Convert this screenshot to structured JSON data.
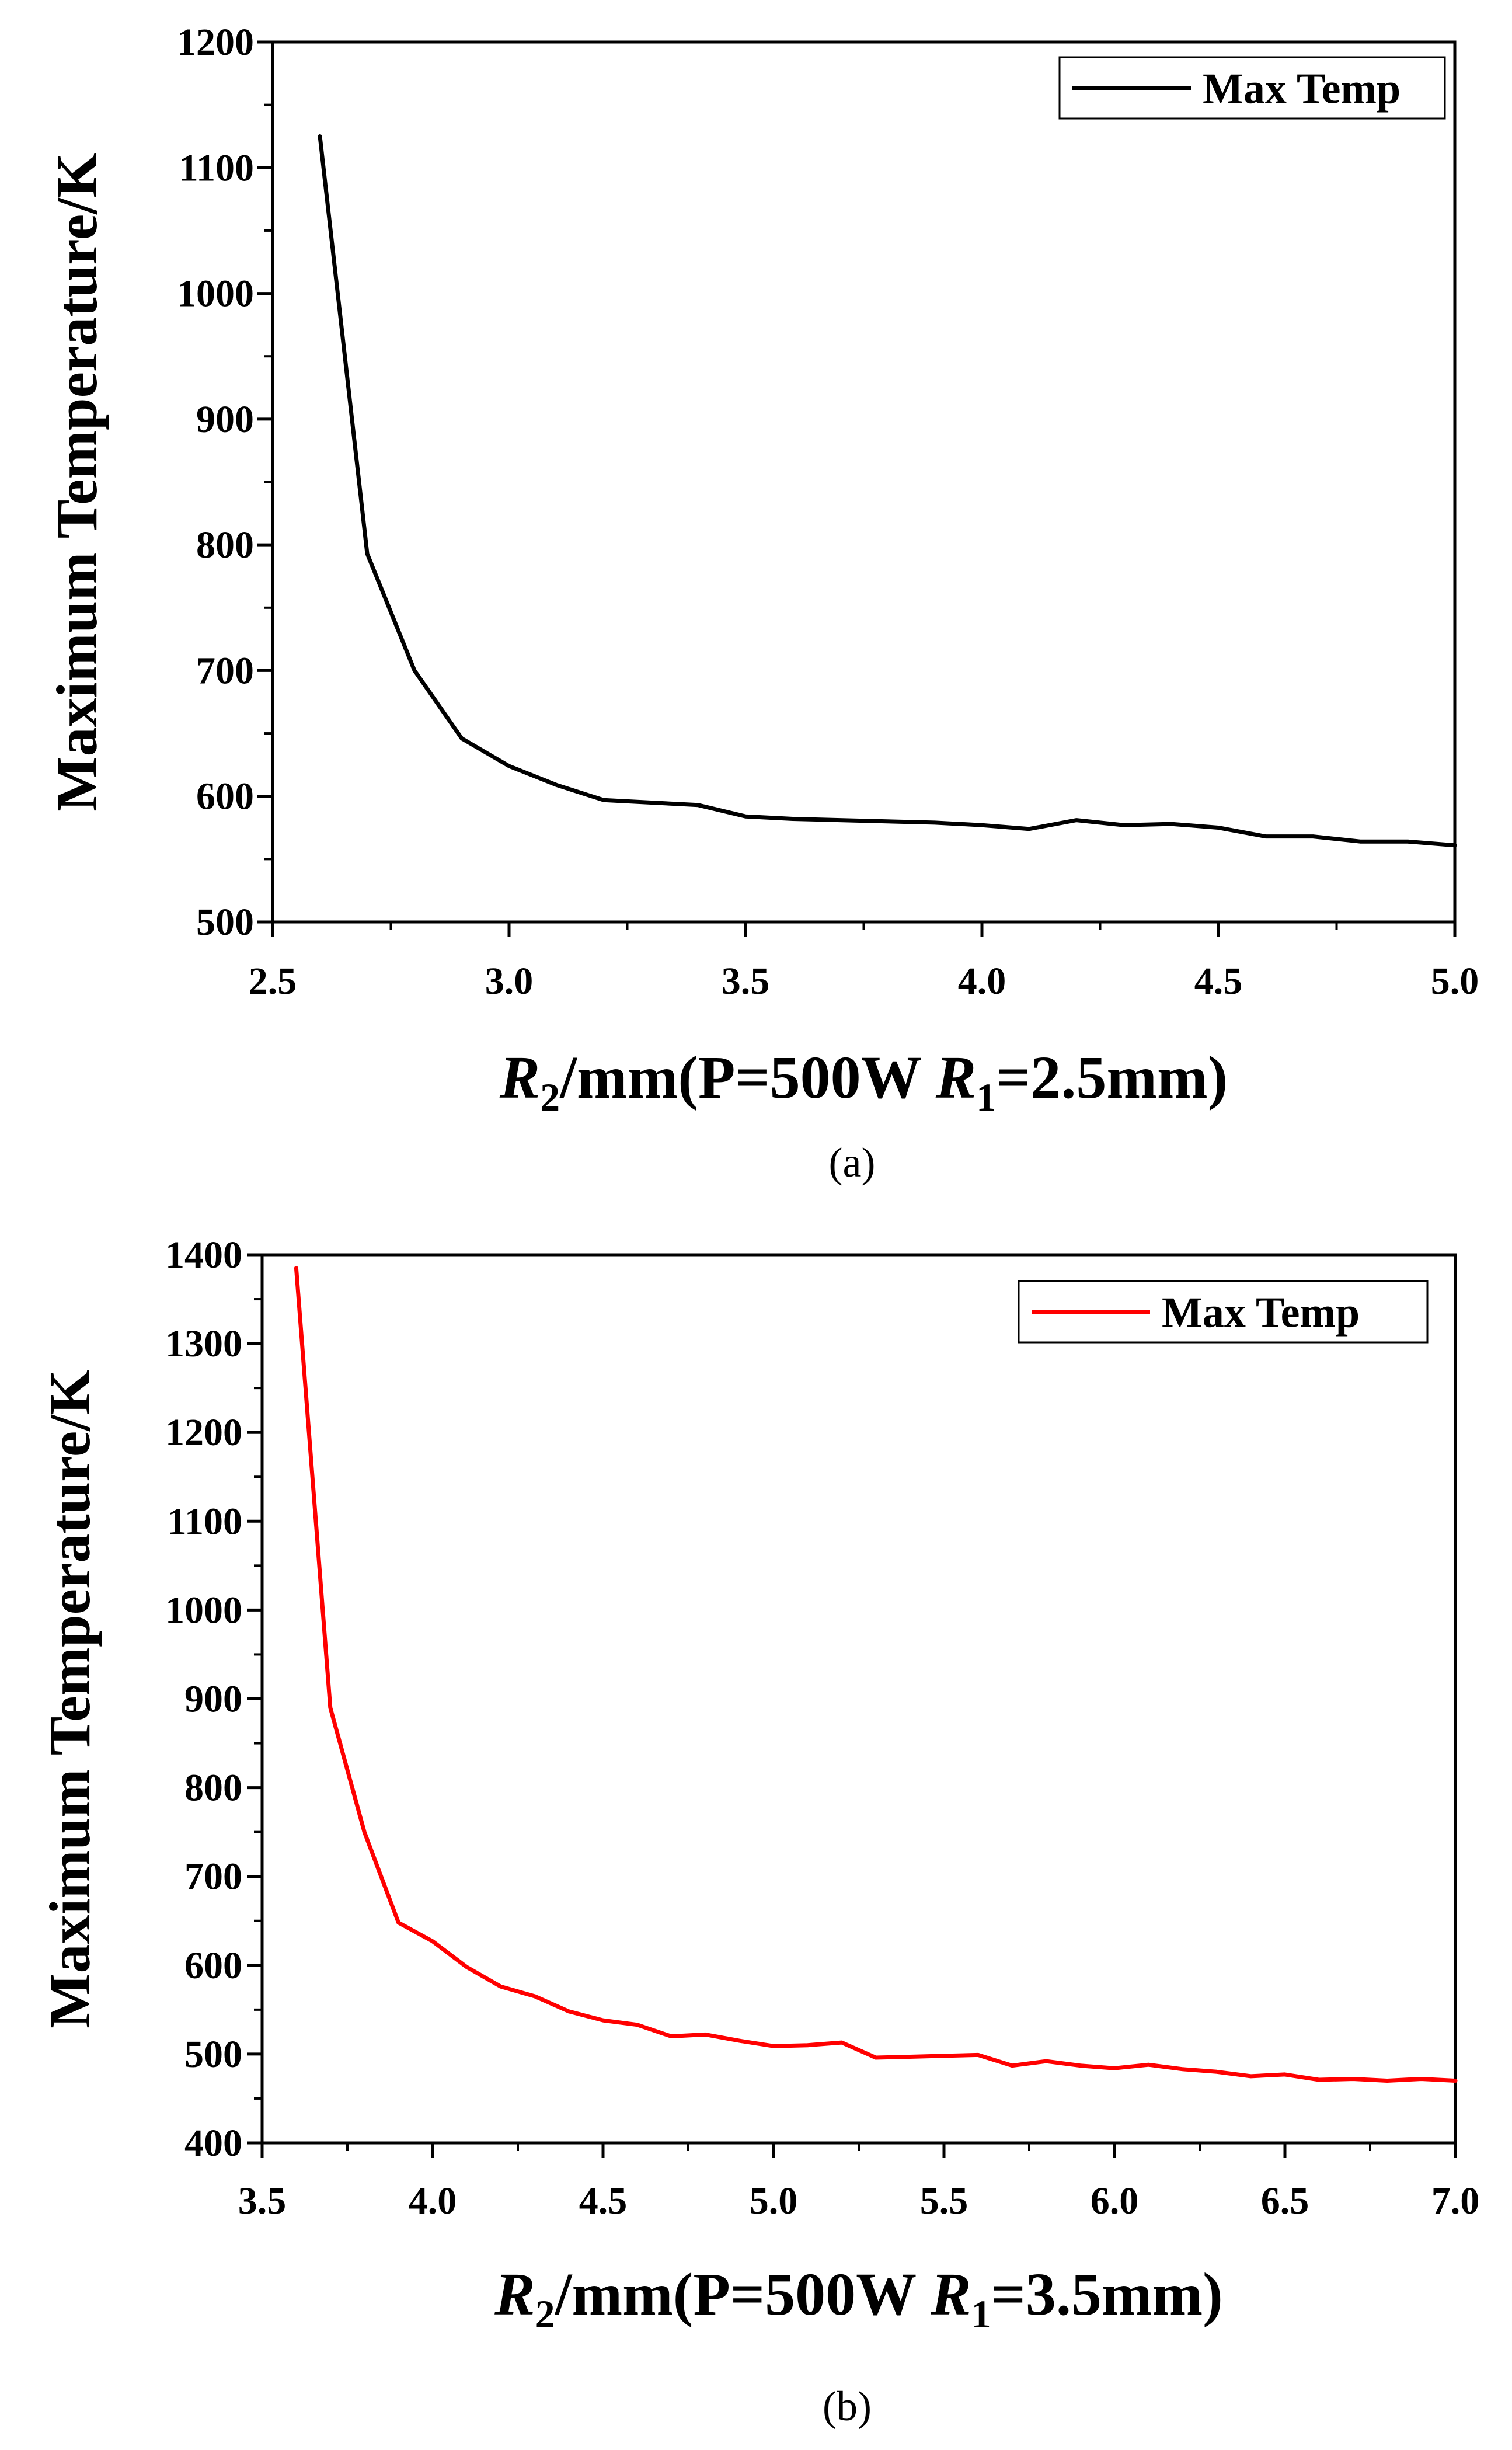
{
  "chart_data": [
    {
      "type": "line",
      "panel_label": "(a)",
      "xlabel": {
        "italic": "R",
        "sub": "2",
        "text": "/mm(P=500W ",
        "italic2": "R",
        "sub2": "1",
        "tail": "=2.5mm)"
      },
      "ylabel": "Maximum Temperature/K",
      "xlim": [
        2.5,
        5.0
      ],
      "ylim": [
        500,
        1200
      ],
      "xticks": [
        2.5,
        3.0,
        3.5,
        4.0,
        4.5,
        5.0
      ],
      "xtick_labels": [
        "2.5",
        "3.0",
        "3.5",
        "4.0",
        "4.5",
        "5.0"
      ],
      "yticks": [
        500,
        600,
        700,
        800,
        900,
        1000,
        1100,
        1200
      ],
      "ytick_labels": [
        "500",
        "600",
        "700",
        "800",
        "900",
        "1000",
        "1100",
        "1200"
      ],
      "legend_position": "top-right",
      "series": [
        {
          "name": "Max Temp",
          "color": "#000000",
          "x": [
            2.6,
            2.7,
            2.8,
            2.9,
            3.0,
            3.1,
            3.2,
            3.3,
            3.4,
            3.5,
            3.6,
            3.7,
            3.8,
            3.9,
            4.0,
            4.1,
            4.2,
            4.3,
            4.4,
            4.5,
            4.6,
            4.7,
            4.8,
            4.9,
            5.0
          ],
          "values": [
            1125,
            793,
            700,
            646,
            624,
            609,
            597,
            595,
            593,
            584,
            582,
            581,
            580,
            579,
            577,
            574,
            581,
            577,
            578,
            575,
            568,
            568,
            564,
            564,
            561
          ]
        }
      ]
    },
    {
      "type": "line",
      "panel_label": "(b)",
      "xlabel": {
        "italic": "R",
        "sub": "2",
        "text": "/mm(P=500W ",
        "italic2": "R",
        "sub2": "1",
        "tail": "=3.5mm)"
      },
      "ylabel": "Maximum Temperature/K",
      "xlim": [
        3.5,
        7.0
      ],
      "ylim": [
        400,
        1400
      ],
      "xticks": [
        3.5,
        4.0,
        4.5,
        5.0,
        5.5,
        6.0,
        6.5,
        7.0
      ],
      "xtick_labels": [
        "3.5",
        "4.0",
        "4.5",
        "5.0",
        "5.5",
        "6.0",
        "6.5",
        "7.0"
      ],
      "yticks": [
        400,
        500,
        600,
        700,
        800,
        900,
        1000,
        1100,
        1200,
        1300,
        1400
      ],
      "ytick_labels": [
        "400",
        "500",
        "600",
        "700",
        "800",
        "900",
        "1000",
        "1100",
        "1200",
        "1300",
        "1400"
      ],
      "legend_position": "top-right",
      "series": [
        {
          "name": "Max Temp",
          "color": "#ff0000",
          "x": [
            3.6,
            3.7,
            3.8,
            3.9,
            4.0,
            4.1,
            4.2,
            4.3,
            4.4,
            4.5,
            4.6,
            4.7,
            4.8,
            4.9,
            5.0,
            5.1,
            5.2,
            5.3,
            5.4,
            5.5,
            5.6,
            5.7,
            5.8,
            5.9,
            6.0,
            6.1,
            6.2,
            6.3,
            6.4,
            6.5,
            6.6,
            6.7,
            6.8,
            6.9,
            7.0
          ],
          "values": [
            1385,
            890,
            750,
            648,
            627,
            598,
            576,
            565,
            548,
            538,
            533,
            520,
            522,
            515,
            509,
            510,
            513,
            496,
            497,
            498,
            499,
            487,
            492,
            487,
            484,
            488,
            483,
            480,
            475,
            477,
            471,
            472,
            470,
            472,
            470
          ]
        }
      ]
    }
  ]
}
